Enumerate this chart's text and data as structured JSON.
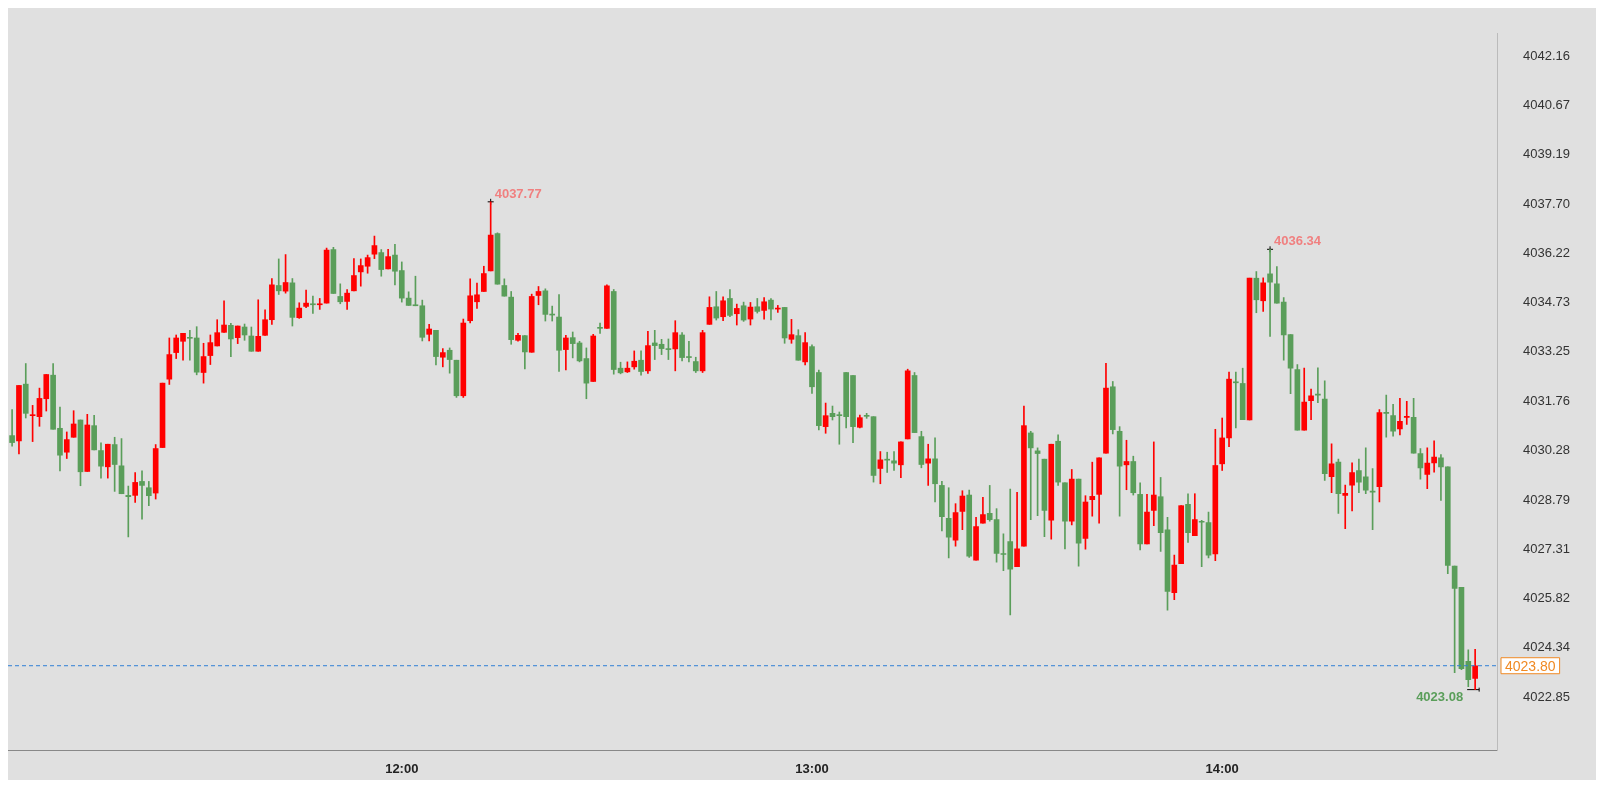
{
  "chart_data": {
    "type": "candlestick",
    "x": [
      11.05,
      11.0667,
      11.0833,
      11.1,
      11.1167,
      11.1333,
      11.15,
      11.1667,
      11.1833,
      11.2,
      11.2167,
      11.2333,
      11.25,
      11.2667,
      11.2833,
      11.3,
      11.3167,
      11.3333,
      11.35,
      11.3667,
      11.3833,
      11.4,
      11.4167,
      11.4333,
      11.45,
      11.4667,
      11.4833,
      11.5,
      11.5167,
      11.5333,
      11.55,
      11.5667,
      11.5833,
      11.6,
      11.6167,
      11.6333,
      11.65,
      11.6667,
      11.6833,
      11.7,
      11.7167,
      11.7333,
      11.75,
      11.7667,
      11.7833,
      11.8,
      11.8167,
      11.8333,
      11.85,
      11.8667,
      11.8833,
      11.9,
      11.9167,
      11.9333,
      11.95,
      11.9667,
      11.9833,
      12,
      12.0167,
      12.0333,
      12.05,
      12.0667,
      12.0833,
      12.1,
      12.1167,
      12.1333,
      12.15,
      12.1667,
      12.1833,
      12.2,
      12.2167,
      12.2333,
      12.25,
      12.2667,
      12.2833,
      12.3,
      12.3167,
      12.3333,
      12.35,
      12.3667,
      12.3833,
      12.4,
      12.4167,
      12.4333,
      12.45,
      12.4667,
      12.4833,
      12.5,
      12.5167,
      12.5333,
      12.55,
      12.5667,
      12.5833,
      12.6,
      12.6167,
      12.6333,
      12.65,
      12.6667,
      12.6833,
      12.7,
      12.7167,
      12.7333,
      12.75,
      12.7667,
      12.7833,
      12.8,
      12.8167,
      12.8333,
      12.85,
      12.8667,
      12.8833,
      12.9,
      12.9167,
      12.9333,
      12.95,
      12.9667,
      12.9833,
      13,
      13.0167,
      13.0333,
      13.05,
      13.0667,
      13.0833,
      13.1,
      13.1167,
      13.1333,
      13.15,
      13.1667,
      13.1833,
      13.2,
      13.2167,
      13.2333,
      13.25,
      13.2667,
      13.2833,
      13.3,
      13.3167,
      13.3333,
      13.35,
      13.3667,
      13.3833,
      13.4,
      13.4167,
      13.4333,
      13.45,
      13.4667,
      13.4833,
      13.5,
      13.5167,
      13.5333,
      13.55,
      13.5667,
      13.5833,
      13.6,
      13.6167,
      13.6333,
      13.65,
      13.6667,
      13.6833,
      13.7,
      13.7167,
      13.7333,
      13.75,
      13.7667,
      13.7833,
      13.8,
      13.8167,
      13.8333,
      13.85,
      13.8667,
      13.8833,
      13.9,
      13.9167,
      13.9333,
      13.95,
      13.9667,
      13.9833,
      14,
      14.0167,
      14.0333,
      14.05,
      14.0667,
      14.0833,
      14.1,
      14.1167,
      14.1333,
      14.15,
      14.1667,
      14.1833,
      14.2,
      14.2167,
      14.2333,
      14.25,
      14.2667,
      14.2833,
      14.3,
      14.3167,
      14.3333,
      14.35,
      14.3667,
      14.3833,
      14.4,
      14.4167,
      14.4333,
      14.45,
      14.4667,
      14.4833,
      14.5,
      14.5167,
      14.5333,
      14.55,
      14.5667,
      14.5833,
      14.6,
      14.6167
    ],
    "ohlc": [
      [
        4030.73,
        4031.51,
        4030.41,
        4030.52
      ],
      [
        4030.57,
        4032.24,
        4030.18,
        4032.24
      ],
      [
        4032.28,
        4032.9,
        4031.26,
        4031.4
      ],
      [
        4031.33,
        4031.64,
        4030.55,
        4031.36
      ],
      [
        4031.3,
        4032.16,
        4031.01,
        4031.85
      ],
      [
        4031.84,
        4032.57,
        4031.47,
        4032.57
      ],
      [
        4032.55,
        4032.9,
        4030.92,
        4030.92
      ],
      [
        4030.95,
        4031.59,
        4029.67,
        4030.14
      ],
      [
        4030.23,
        4030.84,
        4030.04,
        4030.61
      ],
      [
        4030.68,
        4031.48,
        4030.68,
        4031.08
      ],
      [
        4031.2,
        4031.2,
        4029.22,
        4029.64
      ],
      [
        4029.65,
        4031.37,
        4029.65,
        4031.05
      ],
      [
        4031.03,
        4031.34,
        4030.3,
        4030.3
      ],
      [
        4030.28,
        4030.51,
        4029.45,
        4029.81
      ],
      [
        4029.79,
        4030.47,
        4029.45,
        4030.47
      ],
      [
        4030.46,
        4030.68,
        4029.05,
        4029.86
      ],
      [
        4029.82,
        4030.64,
        4028.98,
        4028.98
      ],
      [
        4028.93,
        4029.21,
        4027.68,
        4028.89
      ],
      [
        4028.93,
        4029.62,
        4028.72,
        4029.32
      ],
      [
        4029.35,
        4029.67,
        4028.21,
        4029.23
      ],
      [
        4029.16,
        4029.35,
        4028.62,
        4028.92
      ],
      [
        4029.0,
        4030.46,
        4028.82,
        4030.34
      ],
      [
        4030.37,
        4032.31,
        4030.37,
        4032.31
      ],
      [
        4032.43,
        4033.67,
        4032.27,
        4033.17
      ],
      [
        4033.23,
        4033.76,
        4033.05,
        4033.67
      ],
      [
        4033.57,
        4033.81,
        4033.0,
        4033.81
      ],
      [
        4033.68,
        4033.9,
        4033.0,
        4033.66
      ],
      [
        4033.67,
        4034.01,
        4032.56,
        4032.64
      ],
      [
        4032.63,
        4033.51,
        4032.31,
        4033.11
      ],
      [
        4033.14,
        4033.76,
        4032.87,
        4033.53
      ],
      [
        4033.43,
        4034.22,
        4033.43,
        4033.83
      ],
      [
        4033.84,
        4034.79,
        4033.84,
        4034.06
      ],
      [
        4034.05,
        4034.11,
        4033.11,
        4033.64
      ],
      [
        4033.68,
        4034.03,
        4033.5,
        4034.03
      ],
      [
        4034.0,
        4034.09,
        4033.6,
        4033.76
      ],
      [
        4033.73,
        4034.0,
        4033.27,
        4033.27
      ],
      [
        4033.27,
        4034.82,
        4033.27,
        4033.72
      ],
      [
        4033.75,
        4034.52,
        4033.75,
        4034.22
      ],
      [
        4034.22,
        4035.46,
        4034.08,
        4035.27
      ],
      [
        4035.25,
        4036.05,
        4034.98,
        4035.09
      ],
      [
        4035.08,
        4036.18,
        4035.02,
        4035.34
      ],
      [
        4035.33,
        4035.46,
        4034.03,
        4034.29
      ],
      [
        4034.28,
        4034.73,
        4034.26,
        4034.57
      ],
      [
        4034.62,
        4035.11,
        4034.58,
        4034.72
      ],
      [
        4034.69,
        4034.93,
        4034.41,
        4034.67
      ],
      [
        4034.67,
        4034.86,
        4034.53,
        4034.69
      ],
      [
        4034.72,
        4036.38,
        4034.72,
        4036.32
      ],
      [
        4036.33,
        4036.4,
        4035.01,
        4035.01
      ],
      [
        4034.92,
        4035.3,
        4034.7,
        4034.76
      ],
      [
        4034.77,
        4035.13,
        4034.53,
        4035.02
      ],
      [
        4035.09,
        4036.06,
        4035.09,
        4035.55
      ],
      [
        4035.66,
        4036.05,
        4035.23,
        4035.85
      ],
      [
        4035.83,
        4036.17,
        4035.62,
        4036.09
      ],
      [
        4036.19,
        4036.74,
        4036.06,
        4036.45
      ],
      [
        4036.24,
        4036.33,
        4035.53,
        4035.73
      ],
      [
        4035.75,
        4036.34,
        4035.75,
        4036.12
      ],
      [
        4036.17,
        4036.49,
        4035.27,
        4035.68
      ],
      [
        4035.7,
        4035.96,
        4034.75,
        4034.87
      ],
      [
        4034.87,
        4035.06,
        4034.65,
        4034.65
      ],
      [
        4034.65,
        4035.53,
        4034.64,
        4034.64
      ],
      [
        4034.64,
        4034.81,
        4033.58,
        4033.69
      ],
      [
        4033.78,
        4034.08,
        4033.58,
        4033.94
      ],
      [
        4033.9,
        4033.9,
        4032.86,
        4033.11
      ],
      [
        4033.09,
        4033.35,
        4032.8,
        4033.23
      ],
      [
        4033.3,
        4033.37,
        4032.61,
        4033.02
      ],
      [
        4033.0,
        4033.0,
        4031.88,
        4031.93
      ],
      [
        4031.93,
        4034.24,
        4031.88,
        4034.12
      ],
      [
        4034.19,
        4035.45,
        4034.12,
        4034.94
      ],
      [
        4034.76,
        4035.32,
        4034.56,
        4034.97
      ],
      [
        4035.07,
        4035.83,
        4035.07,
        4035.61
      ],
      [
        4035.69,
        4037.77,
        4035.69,
        4036.77
      ],
      [
        4036.81,
        4036.84,
        4035.29,
        4035.29
      ],
      [
        4035.25,
        4035.45,
        4034.93,
        4034.93
      ],
      [
        4034.9,
        4035.07,
        4033.48,
        4033.62
      ],
      [
        4033.6,
        4033.81,
        4033.57,
        4033.75
      ],
      [
        4033.74,
        4033.74,
        4032.74,
        4033.25
      ],
      [
        4033.24,
        4034.99,
        4033.24,
        4034.92
      ],
      [
        4034.95,
        4035.22,
        4034.67,
        4035.07
      ],
      [
        4035.09,
        4035.15,
        4034.18,
        4034.38
      ],
      [
        4034.37,
        4034.63,
        4034.18,
        4034.36
      ],
      [
        4034.3,
        4034.98,
        4032.66,
        4033.3
      ],
      [
        4033.32,
        4033.75,
        4032.71,
        4033.67
      ],
      [
        4033.68,
        4033.85,
        4033.07,
        4033.5
      ],
      [
        4033.52,
        4033.57,
        4032.95,
        4032.98
      ],
      [
        4033.05,
        4033.37,
        4031.84,
        4032.31
      ],
      [
        4032.36,
        4033.78,
        4032.36,
        4033.73
      ],
      [
        4033.97,
        4034.12,
        4033.81,
        4033.96
      ],
      [
        4033.96,
        4035.27,
        4033.96,
        4035.24
      ],
      [
        4035.07,
        4035.13,
        4032.58,
        4032.72
      ],
      [
        4032.76,
        4032.94,
        4032.59,
        4032.62
      ],
      [
        4032.65,
        4032.95,
        4032.63,
        4032.76
      ],
      [
        4032.8,
        4033.28,
        4032.73,
        4032.97
      ],
      [
        4033.0,
        4033.28,
        4032.55,
        4032.66
      ],
      [
        4032.68,
        4033.87,
        4032.6,
        4033.44
      ],
      [
        4033.52,
        4033.9,
        4033.02,
        4033.44
      ],
      [
        4033.48,
        4033.63,
        4033.17,
        4033.35
      ],
      [
        4033.33,
        4033.64,
        4033.02,
        4033.32
      ],
      [
        4033.34,
        4034.19,
        4032.68,
        4033.83
      ],
      [
        4033.76,
        4033.83,
        4032.98,
        4033.08
      ],
      [
        4033.09,
        4033.57,
        4032.95,
        4033.08
      ],
      [
        4032.96,
        4033.09,
        4032.63,
        4032.68
      ],
      [
        4032.68,
        4033.9,
        4032.63,
        4033.83
      ],
      [
        4034.08,
        4034.91,
        4034.08,
        4034.59
      ],
      [
        4034.61,
        4035.07,
        4034.21,
        4034.27
      ],
      [
        4034.31,
        4034.91,
        4034.19,
        4034.79
      ],
      [
        4034.86,
        4035.13,
        4034.31,
        4034.35
      ],
      [
        4034.4,
        4034.69,
        4034.06,
        4034.56
      ],
      [
        4034.64,
        4034.75,
        4034.17,
        4034.21
      ],
      [
        4034.24,
        4034.74,
        4034.06,
        4034.6
      ],
      [
        4034.61,
        4034.86,
        4034.42,
        4034.47
      ],
      [
        4034.5,
        4034.89,
        4034.24,
        4034.76
      ],
      [
        4034.81,
        4034.86,
        4034.21,
        4034.54
      ],
      [
        4034.54,
        4034.65,
        4034.44,
        4034.55
      ],
      [
        4034.59,
        4034.59,
        4033.51,
        4033.67
      ],
      [
        4033.63,
        4034.23,
        4033.51,
        4033.77
      ],
      [
        4033.74,
        4033.92,
        4033.0,
        4033.0
      ],
      [
        4032.95,
        4033.83,
        4032.86,
        4033.53
      ],
      [
        4033.41,
        4033.46,
        4032.0,
        4032.2
      ],
      [
        4032.63,
        4032.7,
        4030.9,
        4031.03
      ],
      [
        4031.0,
        4031.71,
        4030.8,
        4031.33
      ],
      [
        4031.4,
        4031.62,
        4031.2,
        4031.3
      ],
      [
        4031.36,
        4031.44,
        4030.47,
        4031.33
      ],
      [
        4032.63,
        4032.63,
        4030.96,
        4031.3
      ],
      [
        4032.54,
        4032.54,
        4030.52,
        4031.0
      ],
      [
        4030.98,
        4031.35,
        4030.96,
        4031.27
      ],
      [
        4031.33,
        4031.4,
        4031.25,
        4031.31
      ],
      [
        4031.3,
        4031.3,
        4029.33,
        4029.53
      ],
      [
        4029.74,
        4030.25,
        4029.28,
        4030.0
      ],
      [
        4030.0,
        4030.23,
        4029.62,
        4029.99
      ],
      [
        4029.97,
        4030.25,
        4029.68,
        4029.9
      ],
      [
        4029.85,
        4030.54,
        4029.46,
        4030.54
      ],
      [
        4030.63,
        4032.73,
        4030.63,
        4032.68
      ],
      [
        4032.54,
        4032.63,
        4030.82,
        4030.82
      ],
      [
        4030.7,
        4030.86,
        4029.76,
        4029.86
      ],
      [
        4029.9,
        4030.47,
        4029.23,
        4030.03
      ],
      [
        4030.03,
        4030.66,
        4028.73,
        4029.28
      ],
      [
        4029.23,
        4029.35,
        4027.86,
        4028.29
      ],
      [
        4028.24,
        4029.16,
        4027.05,
        4027.67
      ],
      [
        4027.58,
        4028.68,
        4027.4,
        4028.41
      ],
      [
        4028.45,
        4029.07,
        4027.9,
        4028.91
      ],
      [
        4028.94,
        4029.09,
        4027.06,
        4027.1
      ],
      [
        4026.98,
        4028.27,
        4026.98,
        4027.99
      ],
      [
        4028.09,
        4028.87,
        4028.09,
        4028.35
      ],
      [
        4028.39,
        4029.23,
        4028.15,
        4028.2
      ],
      [
        4028.2,
        4028.53,
        4026.92,
        4027.18
      ],
      [
        4027.16,
        4027.77,
        4026.66,
        4027.15
      ],
      [
        4027.54,
        4029.12,
        4025.33,
        4026.71
      ],
      [
        4026.78,
        4029.02,
        4026.78,
        4027.32
      ],
      [
        4027.4,
        4031.62,
        4027.4,
        4031.03
      ],
      [
        4030.81,
        4030.86,
        4028.2,
        4030.36
      ],
      [
        4030.27,
        4030.36,
        4028.32,
        4030.19
      ],
      [
        4030.02,
        4030.02,
        4027.69,
        4028.48
      ],
      [
        4028.18,
        4030.47,
        4027.61,
        4030.47
      ],
      [
        4030.56,
        4030.75,
        4029.23,
        4029.33
      ],
      [
        4029.31,
        4029.31,
        4027.32,
        4028.15
      ],
      [
        4028.15,
        4029.71,
        4028.04,
        4029.42
      ],
      [
        4029.42,
        4029.42,
        4026.8,
        4027.49
      ],
      [
        4027.63,
        4028.92,
        4027.31,
        4028.73
      ],
      [
        4028.8,
        4029.93,
        4028.3,
        4028.9
      ],
      [
        4028.96,
        4030.06,
        4028.09,
        4030.06
      ],
      [
        4030.2,
        4032.91,
        4030.2,
        4032.16
      ],
      [
        4032.2,
        4032.36,
        4030.78,
        4030.91
      ],
      [
        4030.86,
        4031.0,
        4028.3,
        4029.81
      ],
      [
        4029.85,
        4030.59,
        4029.1,
        4029.95
      ],
      [
        4029.95,
        4030.11,
        4028.94,
        4029.01
      ],
      [
        4028.96,
        4029.31,
        4027.29,
        4027.47
      ],
      [
        4027.47,
        4028.96,
        4027.47,
        4028.43
      ],
      [
        4028.48,
        4030.54,
        4028.02,
        4028.94
      ],
      [
        4028.89,
        4029.47,
        4027.24,
        4027.81
      ],
      [
        4027.89,
        4028.27,
        4025.47,
        4026.04
      ],
      [
        4026.0,
        4027.13,
        4025.79,
        4026.83
      ],
      [
        4026.87,
        4028.62,
        4026.87,
        4028.62
      ],
      [
        4028.66,
        4028.98,
        4027.51,
        4027.81
      ],
      [
        4027.72,
        4028.98,
        4027.72,
        4028.2
      ],
      [
        4028.14,
        4028.18,
        4026.78,
        4028.12
      ],
      [
        4028.11,
        4028.43,
        4027.05,
        4027.13
      ],
      [
        4027.17,
        4030.92,
        4026.96,
        4029.83
      ],
      [
        4029.88,
        4031.26,
        4029.68,
        4030.66
      ],
      [
        4030.66,
        4032.64,
        4030.4,
        4032.43
      ],
      [
        4032.34,
        4032.64,
        4030.96,
        4032.32
      ],
      [
        4032.3,
        4032.76,
        4031.21,
        4031.21
      ],
      [
        4031.2,
        4035.47,
        4031.2,
        4035.47
      ],
      [
        4035.47,
        4035.67,
        4034.43,
        4034.82
      ],
      [
        4034.79,
        4035.48,
        4034.47,
        4035.33
      ],
      [
        4035.6,
        4036.34,
        4033.72,
        4035.35
      ],
      [
        4035.3,
        4035.82,
        4034.72,
        4034.72
      ],
      [
        4034.75,
        4034.89,
        4033.0,
        4033.76
      ],
      [
        4033.77,
        4033.77,
        4031.99,
        4032.76
      ],
      [
        4032.72,
        4032.87,
        4030.89,
        4030.89
      ],
      [
        4030.89,
        4032.76,
        4030.89,
        4031.74
      ],
      [
        4031.78,
        4032.13,
        4031.21,
        4031.93
      ],
      [
        4031.96,
        4032.77,
        4031.72,
        4031.95
      ],
      [
        4031.83,
        4032.38,
        4029.38,
        4029.58
      ],
      [
        4029.49,
        4030.48,
        4029.01,
        4029.88
      ],
      [
        4029.93,
        4030.02,
        4028.39,
        4028.98
      ],
      [
        4028.93,
        4029.24,
        4027.93,
        4028.99
      ],
      [
        4029.24,
        4029.91,
        4028.46,
        4029.62
      ],
      [
        4029.68,
        4030.02,
        4029.01,
        4029.33
      ],
      [
        4029.49,
        4030.36,
        4028.98,
        4029.09
      ],
      [
        4029.04,
        4029.74,
        4027.9,
        4029.03
      ],
      [
        4029.19,
        4031.51,
        4028.73,
        4031.42
      ],
      [
        4031.41,
        4031.95,
        4030.68,
        4031.4
      ],
      [
        4031.33,
        4031.67,
        4030.71,
        4030.86
      ],
      [
        4030.93,
        4031.85,
        4030.75,
        4031.16
      ],
      [
        4031.28,
        4031.76,
        4031.07,
        4031.29
      ],
      [
        4031.28,
        4031.85,
        4030.2,
        4030.2
      ],
      [
        4030.19,
        4030.34,
        4029.42,
        4029.76
      ],
      [
        4029.56,
        4030.36,
        4029.13,
        4029.9
      ],
      [
        4029.91,
        4030.57,
        4029.63,
        4030.08
      ],
      [
        4030.06,
        4030.16,
        4028.78,
        4029.79
      ],
      [
        4029.79,
        4029.79,
        4026.57,
        4026.82
      ],
      [
        4026.8,
        4026.8,
        4023.59,
        4026.13
      ],
      [
        4026.16,
        4026.16,
        4023.68,
        4023.71
      ],
      [
        4023.93,
        4024.28,
        4023.17,
        4023.38
      ],
      [
        4023.42,
        4024.29,
        4023.08,
        4023.8
      ]
    ],
    "colors": [
      "#5a9e5a",
      "#ff0000",
      "#5a9e5a",
      "#ff0000",
      "#ff0000",
      "#ff0000",
      "#5a9e5a",
      "#5a9e5a",
      "#ff0000",
      "#ff0000",
      "#5a9e5a",
      "#ff0000",
      "#5a9e5a",
      "#5a9e5a",
      "#ff0000",
      "#5a9e5a",
      "#5a9e5a",
      "#5a9e5a",
      "#ff0000",
      "#5a9e5a",
      "#5a9e5a",
      "#ff0000",
      "#ff0000",
      "#ff0000",
      "#ff0000",
      "#ff0000",
      "#5a9e5a",
      "#5a9e5a",
      "#ff0000",
      "#ff0000",
      "#ff0000",
      "#ff0000",
      "#5a9e5a",
      "#ff0000",
      "#5a9e5a",
      "#5a9e5a",
      "#ff0000",
      "#ff0000",
      "#ff0000",
      "#5a9e5a",
      "#ff0000",
      "#5a9e5a",
      "#ff0000",
      "#ff0000",
      "#5a9e5a",
      "#ff0000",
      "#ff0000",
      "#5a9e5a",
      "#5a9e5a",
      "#ff0000",
      "#ff0000",
      "#ff0000",
      "#ff0000",
      "#ff0000",
      "#5a9e5a",
      "#ff0000",
      "#5a9e5a",
      "#5a9e5a",
      "#5a9e5a",
      "#5a9e5a",
      "#5a9e5a",
      "#ff0000",
      "#5a9e5a",
      "#ff0000",
      "#5a9e5a",
      "#5a9e5a",
      "#ff0000",
      "#ff0000",
      "#ff0000",
      "#ff0000",
      "#ff0000",
      "#5a9e5a",
      "#5a9e5a",
      "#5a9e5a",
      "#ff0000",
      "#5a9e5a",
      "#ff0000",
      "#ff0000",
      "#5a9e5a",
      "#5a9e5a",
      "#5a9e5a",
      "#ff0000",
      "#5a9e5a",
      "#5a9e5a",
      "#5a9e5a",
      "#ff0000",
      "#5a9e5a",
      "#ff0000",
      "#5a9e5a",
      "#5a9e5a",
      "#ff0000",
      "#ff0000",
      "#5a9e5a",
      "#ff0000",
      "#5a9e5a",
      "#5a9e5a",
      "#5a9e5a",
      "#ff0000",
      "#5a9e5a",
      "#5a9e5a",
      "#5a9e5a",
      "#ff0000",
      "#ff0000",
      "#5a9e5a",
      "#ff0000",
      "#5a9e5a",
      "#ff0000",
      "#5a9e5a",
      "#ff0000",
      "#5a9e5a",
      "#ff0000",
      "#5a9e5a",
      "#ff0000",
      "#5a9e5a",
      "#ff0000",
      "#5a9e5a",
      "#ff0000",
      "#5a9e5a",
      "#5a9e5a",
      "#ff0000",
      "#5a9e5a",
      "#5a9e5a",
      "#5a9e5a",
      "#5a9e5a",
      "#ff0000",
      "#5a9e5a",
      "#5a9e5a",
      "#ff0000",
      "#5a9e5a",
      "#5a9e5a",
      "#ff0000",
      "#ff0000",
      "#5a9e5a",
      "#5a9e5a",
      "#ff0000",
      "#5a9e5a",
      "#5a9e5a",
      "#5a9e5a",
      "#ff0000",
      "#ff0000",
      "#5a9e5a",
      "#ff0000",
      "#ff0000",
      "#5a9e5a",
      "#5a9e5a",
      "#5a9e5a",
      "#5a9e5a",
      "#ff0000",
      "#ff0000",
      "#5a9e5a",
      "#5a9e5a",
      "#5a9e5a",
      "#ff0000",
      "#5a9e5a",
      "#5a9e5a",
      "#ff0000",
      "#5a9e5a",
      "#ff0000",
      "#ff0000",
      "#ff0000",
      "#ff0000",
      "#5a9e5a",
      "#5a9e5a",
      "#ff0000",
      "#5a9e5a",
      "#5a9e5a",
      "#ff0000",
      "#ff0000",
      "#5a9e5a",
      "#5a9e5a",
      "#ff0000",
      "#ff0000",
      "#5a9e5a",
      "#ff0000",
      "#5a9e5a",
      "#5a9e5a",
      "#ff0000",
      "#ff0000",
      "#ff0000",
      "#5a9e5a",
      "#5a9e5a",
      "#ff0000",
      "#5a9e5a",
      "#ff0000",
      "#5a9e5a",
      "#5a9e5a",
      "#5a9e5a",
      "#5a9e5a",
      "#5a9e5a",
      "#ff0000",
      "#ff0000",
      "#5a9e5a",
      "#5a9e5a",
      "#ff0000",
      "#5a9e5a",
      "#ff0000",
      "#ff0000",
      "#5a9e5a",
      "#5a9e5a",
      "#5a9e5a",
      "#ff0000",
      "#5a9e5a",
      "#5a9e5a",
      "#ff0000",
      "#ff0000",
      "#5a9e5a",
      "#5a9e5a",
      "#ff0000",
      "#ff0000",
      "#5a9e5a",
      "#5a9e5a",
      "#5a9e5a",
      "#5a9e5a",
      "#5a9e5a",
      "#ff0000"
    ],
    "xlim": [
      11.04,
      14.67
    ],
    "xticks": [
      {
        "value": 12,
        "label": "12:00"
      },
      {
        "value": 13,
        "label": "13:00"
      },
      {
        "value": 14,
        "label": "14:00"
      }
    ],
    "ylim": [
      4021.25,
      4042.83
    ],
    "yticks": [
      4022.85,
      4024.34,
      4025.82,
      4027.31,
      4028.79,
      4030.28,
      4031.76,
      4033.25,
      4034.73,
      4036.22,
      {
        "value": 4037.7,
        "label": "4037.70"
      },
      4039.19,
      4040.67,
      4042.16
    ],
    "ref_lines": [
      {
        "axis": "y",
        "value": 4023.8,
        "label": "4023.80",
        "color": "#2f7fd6",
        "line_style": "dashed"
      }
    ],
    "annotations": [
      {
        "text": "4037.77",
        "x": 12.2167,
        "y": 4037.77
      },
      {
        "text": "4036.34",
        "x": 14.1167,
        "y": 4036.34
      },
      {
        "text": "4023.08",
        "x": 14.6167,
        "y": 4023.08
      }
    ],
    "grid": false,
    "legend": false
  }
}
